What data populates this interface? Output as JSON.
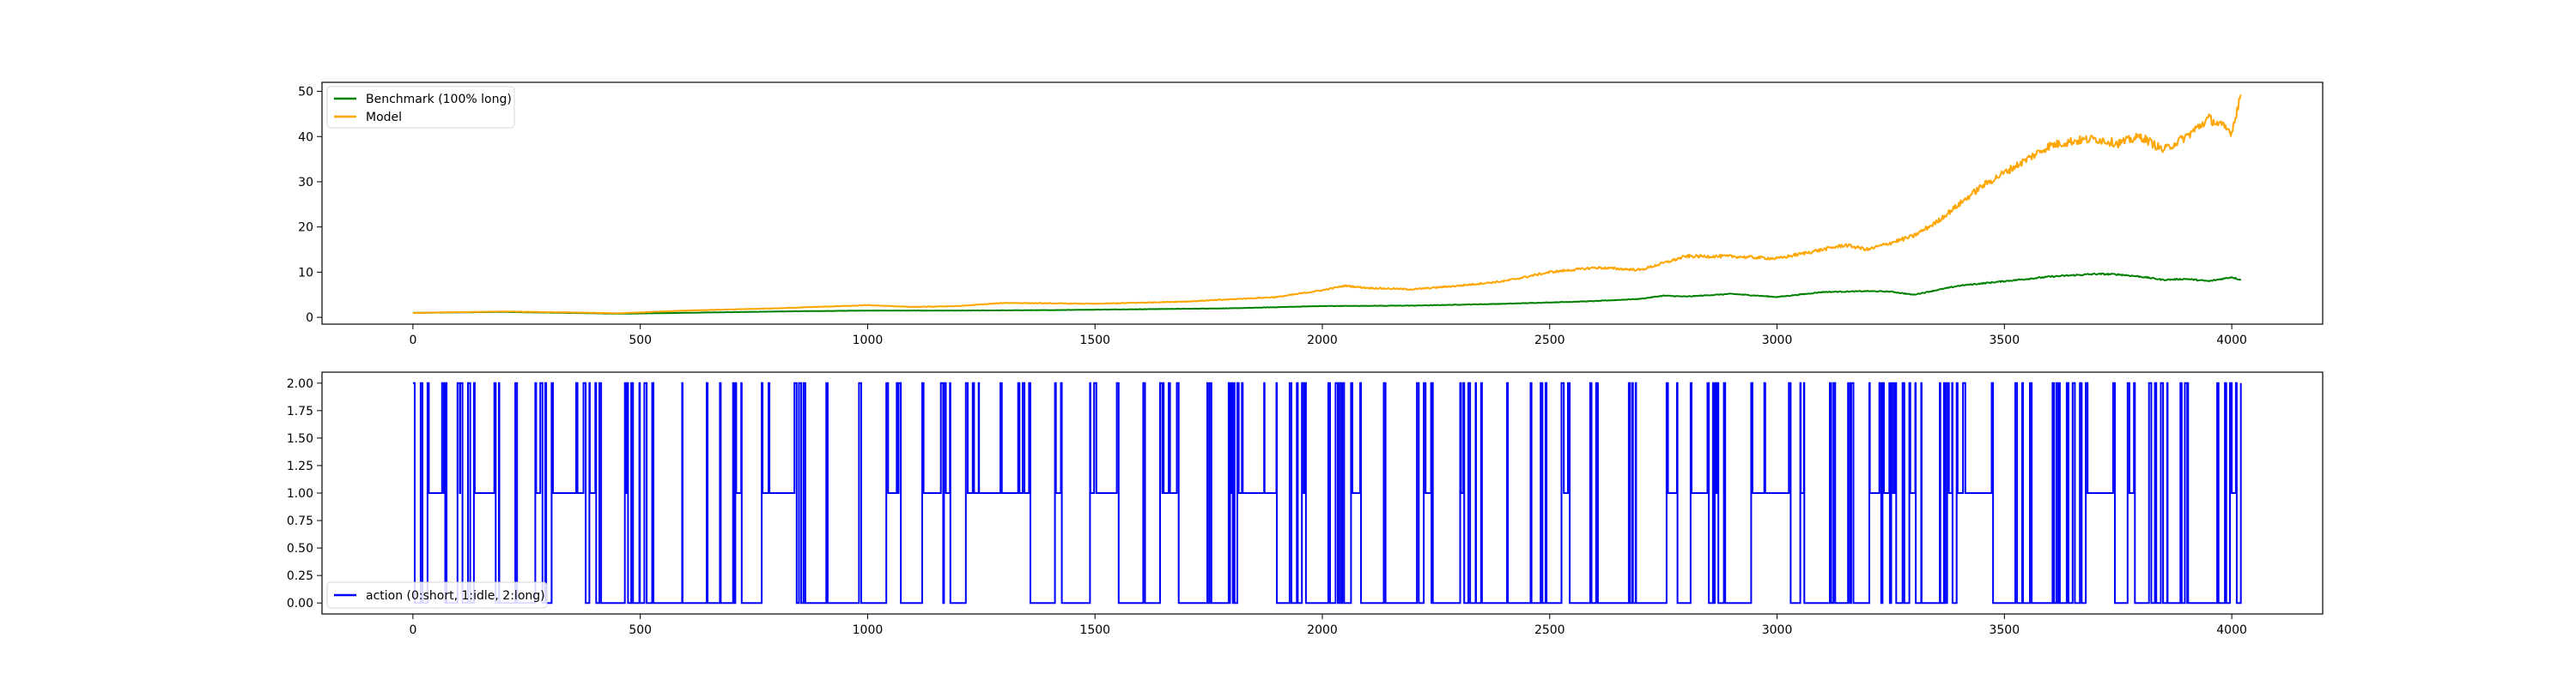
{
  "chart_data": [
    {
      "type": "line",
      "title": "",
      "xlabel": "",
      "ylabel": "",
      "xlim": [
        -200,
        4200
      ],
      "ylim": [
        -1.5,
        52
      ],
      "xticks": [
        0,
        500,
        1000,
        1500,
        2000,
        2500,
        3000,
        3500,
        4000
      ],
      "yticks": [
        0,
        10,
        20,
        30,
        40,
        50
      ],
      "xtick_labels": [
        "0",
        "500",
        "1000",
        "1500",
        "2000",
        "2500",
        "3000",
        "3500",
        "4000"
      ],
      "ytick_labels": [
        "0",
        "10",
        "20",
        "30",
        "40",
        "50"
      ],
      "grid": false,
      "legend_position": "upper-left",
      "series": [
        {
          "name": "Benchmark (100% long)",
          "color": "#008000",
          "x": [
            0,
            200,
            400,
            450,
            600,
            800,
            1000,
            1200,
            1400,
            1600,
            1800,
            2000,
            2200,
            2400,
            2600,
            2700,
            2750,
            2800,
            2900,
            3000,
            3100,
            3200,
            3250,
            3300,
            3400,
            3500,
            3600,
            3700,
            3750,
            3800,
            3850,
            3900,
            3950,
            4000,
            4020
          ],
          "values": [
            1.0,
            1.2,
            0.9,
            0.8,
            1.0,
            1.3,
            1.5,
            1.5,
            1.6,
            1.8,
            2.0,
            2.5,
            2.6,
            3.0,
            3.6,
            4.1,
            4.8,
            4.6,
            5.2,
            4.5,
            5.6,
            5.8,
            5.7,
            5.0,
            7.0,
            8.0,
            9.0,
            9.6,
            9.5,
            9.0,
            8.3,
            8.5,
            8.0,
            8.9,
            8.3
          ]
        },
        {
          "name": "Model",
          "color": "#ffa500",
          "x": [
            0,
            200,
            400,
            450,
            600,
            800,
            1000,
            1100,
            1200,
            1300,
            1500,
            1700,
            1800,
            1900,
            2000,
            2050,
            2100,
            2200,
            2300,
            2400,
            2500,
            2550,
            2600,
            2700,
            2750,
            2800,
            2900,
            3000,
            3050,
            3100,
            3150,
            3200,
            3250,
            3300,
            3350,
            3400,
            3450,
            3500,
            3550,
            3600,
            3650,
            3700,
            3750,
            3800,
            3850,
            3900,
            3950,
            4000,
            4020
          ],
          "values": [
            1.0,
            1.3,
            1.0,
            0.9,
            1.5,
            2.0,
            2.7,
            2.3,
            2.5,
            3.2,
            3.0,
            3.5,
            4.0,
            4.5,
            6.0,
            7.0,
            6.5,
            6.2,
            7.0,
            8.0,
            10.0,
            10.5,
            11.0,
            10.5,
            12.0,
            13.5,
            13.5,
            13.0,
            14.0,
            15.0,
            16.0,
            15.0,
            16.5,
            18.0,
            21.0,
            25.0,
            29.0,
            32.0,
            35.0,
            38.0,
            39.0,
            39.5,
            38.5,
            40.0,
            37.0,
            40.0,
            44.0,
            41.0,
            49.5
          ]
        }
      ]
    },
    {
      "type": "line",
      "title": "",
      "xlabel": "",
      "ylabel": "",
      "xlim": [
        -200,
        4200
      ],
      "ylim": [
        -0.1,
        2.1
      ],
      "xticks": [
        0,
        500,
        1000,
        1500,
        2000,
        2500,
        3000,
        3500,
        4000
      ],
      "yticks": [
        0,
        0.25,
        0.5,
        0.75,
        1.0,
        1.25,
        1.5,
        1.75,
        2.0
      ],
      "xtick_labels": [
        "0",
        "500",
        "1000",
        "1500",
        "2000",
        "2500",
        "3000",
        "3500",
        "4000"
      ],
      "ytick_labels": [
        "0.00",
        "0.25",
        "0.50",
        "0.75",
        "1.00",
        "1.25",
        "1.50",
        "1.75",
        "2.00"
      ],
      "grid": false,
      "legend_position": "lower-left",
      "series": [
        {
          "name": "action (0:short, 1:idle, 2:long)",
          "color": "#0000ff",
          "x_start": 0,
          "x_end": 4020,
          "value_set": [
            0,
            1,
            2
          ],
          "dominant_value": 2
        }
      ]
    }
  ]
}
